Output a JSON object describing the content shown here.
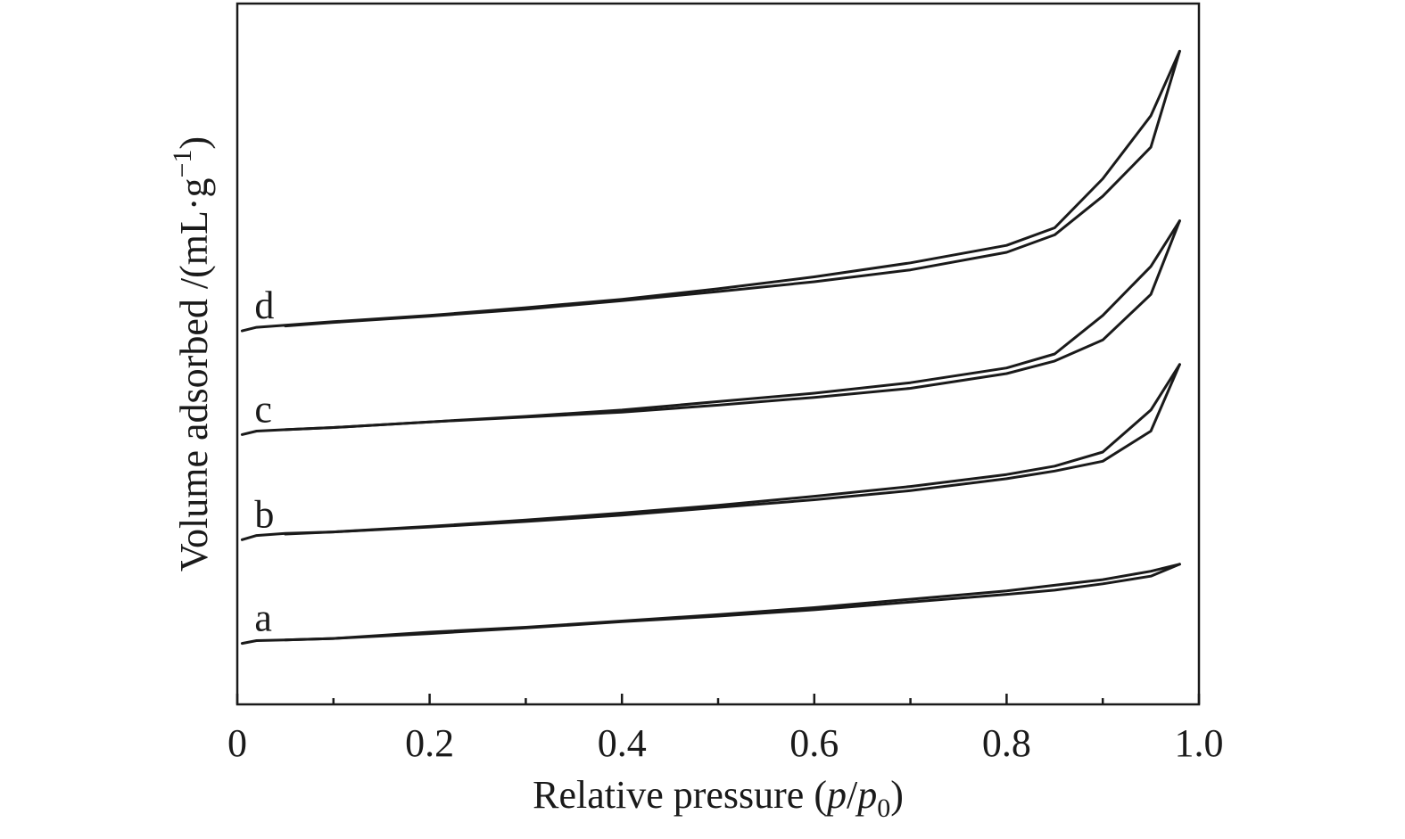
{
  "chart_data": {
    "type": "line",
    "title": "",
    "xlabel": {
      "prefix": "Relative pressure (",
      "italic": "p",
      "slash": "/",
      "italic2": "p",
      "subscript": "0",
      "suffix": ")"
    },
    "ylabel": {
      "main": "Volume adsorbed /(mL·g",
      "superscript": "−1",
      "suffix": ")"
    },
    "xlim": [
      0,
      1.0
    ],
    "ylim": [
      0,
      1
    ],
    "y_ticks_shown": false,
    "grid": false,
    "legend": "none",
    "x_ticks_major": [
      {
        "value": 0,
        "label": "0"
      },
      {
        "value": 0.2,
        "label": "0.2"
      },
      {
        "value": 0.4,
        "label": "0.4"
      },
      {
        "value": 0.6,
        "label": "0.6"
      },
      {
        "value": 0.8,
        "label": "0.8"
      },
      {
        "value": 1.0,
        "label": "1.0"
      }
    ],
    "x_ticks_minor": [
      0.1,
      0.3,
      0.5,
      0.7,
      0.9
    ],
    "series": [
      {
        "name": "a",
        "adsorption": [
          [
            0.005,
            0.087
          ],
          [
            0.02,
            0.091
          ],
          [
            0.05,
            0.092
          ],
          [
            0.1,
            0.094
          ],
          [
            0.2,
            0.103
          ],
          [
            0.3,
            0.11
          ],
          [
            0.4,
            0.119
          ],
          [
            0.5,
            0.128
          ],
          [
            0.6,
            0.138
          ],
          [
            0.7,
            0.15
          ],
          [
            0.8,
            0.162
          ],
          [
            0.85,
            0.17
          ],
          [
            0.9,
            0.178
          ],
          [
            0.95,
            0.19
          ],
          [
            0.98,
            0.2
          ]
        ],
        "desorption": [
          [
            0.98,
            0.2
          ],
          [
            0.95,
            0.183
          ],
          [
            0.9,
            0.172
          ],
          [
            0.85,
            0.163
          ],
          [
            0.8,
            0.157
          ],
          [
            0.7,
            0.146
          ],
          [
            0.6,
            0.135
          ],
          [
            0.5,
            0.126
          ],
          [
            0.4,
            0.118
          ],
          [
            0.3,
            0.109
          ],
          [
            0.2,
            0.101
          ],
          [
            0.1,
            0.094
          ],
          [
            0.05,
            0.092
          ]
        ]
      },
      {
        "name": "b",
        "adsorption": [
          [
            0.005,
            0.235
          ],
          [
            0.02,
            0.241
          ],
          [
            0.05,
            0.244
          ],
          [
            0.1,
            0.246
          ],
          [
            0.2,
            0.254
          ],
          [
            0.3,
            0.263
          ],
          [
            0.4,
            0.273
          ],
          [
            0.5,
            0.284
          ],
          [
            0.6,
            0.297
          ],
          [
            0.7,
            0.311
          ],
          [
            0.8,
            0.328
          ],
          [
            0.85,
            0.34
          ],
          [
            0.9,
            0.36
          ],
          [
            0.95,
            0.42
          ],
          [
            0.98,
            0.485
          ]
        ],
        "desorption": [
          [
            0.98,
            0.485
          ],
          [
            0.95,
            0.39
          ],
          [
            0.9,
            0.347
          ],
          [
            0.85,
            0.333
          ],
          [
            0.8,
            0.322
          ],
          [
            0.7,
            0.305
          ],
          [
            0.6,
            0.292
          ],
          [
            0.5,
            0.281
          ],
          [
            0.4,
            0.27
          ],
          [
            0.3,
            0.261
          ],
          [
            0.2,
            0.253
          ],
          [
            0.1,
            0.246
          ],
          [
            0.05,
            0.243
          ]
        ]
      },
      {
        "name": "c",
        "adsorption": [
          [
            0.005,
            0.385
          ],
          [
            0.02,
            0.39
          ],
          [
            0.05,
            0.392
          ],
          [
            0.1,
            0.395
          ],
          [
            0.2,
            0.403
          ],
          [
            0.3,
            0.411
          ],
          [
            0.4,
            0.42
          ],
          [
            0.5,
            0.432
          ],
          [
            0.6,
            0.444
          ],
          [
            0.7,
            0.459
          ],
          [
            0.8,
            0.48
          ],
          [
            0.85,
            0.5
          ],
          [
            0.9,
            0.555
          ],
          [
            0.95,
            0.625
          ],
          [
            0.98,
            0.69
          ]
        ],
        "desorption": [
          [
            0.98,
            0.69
          ],
          [
            0.95,
            0.585
          ],
          [
            0.9,
            0.52
          ],
          [
            0.85,
            0.49
          ],
          [
            0.8,
            0.472
          ],
          [
            0.7,
            0.451
          ],
          [
            0.6,
            0.438
          ],
          [
            0.5,
            0.427
          ],
          [
            0.4,
            0.417
          ],
          [
            0.3,
            0.41
          ],
          [
            0.2,
            0.403
          ],
          [
            0.1,
            0.395
          ],
          [
            0.05,
            0.392
          ]
        ]
      },
      {
        "name": "d",
        "adsorption": [
          [
            0.005,
            0.533
          ],
          [
            0.02,
            0.538
          ],
          [
            0.05,
            0.541
          ],
          [
            0.1,
            0.546
          ],
          [
            0.2,
            0.555
          ],
          [
            0.3,
            0.566
          ],
          [
            0.4,
            0.578
          ],
          [
            0.5,
            0.593
          ],
          [
            0.6,
            0.61
          ],
          [
            0.7,
            0.63
          ],
          [
            0.8,
            0.655
          ],
          [
            0.85,
            0.68
          ],
          [
            0.9,
            0.75
          ],
          [
            0.95,
            0.84
          ],
          [
            0.98,
            0.932
          ]
        ],
        "desorption": [
          [
            0.98,
            0.932
          ],
          [
            0.95,
            0.795
          ],
          [
            0.9,
            0.725
          ],
          [
            0.85,
            0.67
          ],
          [
            0.8,
            0.645
          ],
          [
            0.7,
            0.62
          ],
          [
            0.6,
            0.603
          ],
          [
            0.5,
            0.589
          ],
          [
            0.4,
            0.576
          ],
          [
            0.3,
            0.564
          ],
          [
            0.2,
            0.554
          ],
          [
            0.1,
            0.545
          ],
          [
            0.05,
            0.54
          ]
        ]
      }
    ]
  }
}
